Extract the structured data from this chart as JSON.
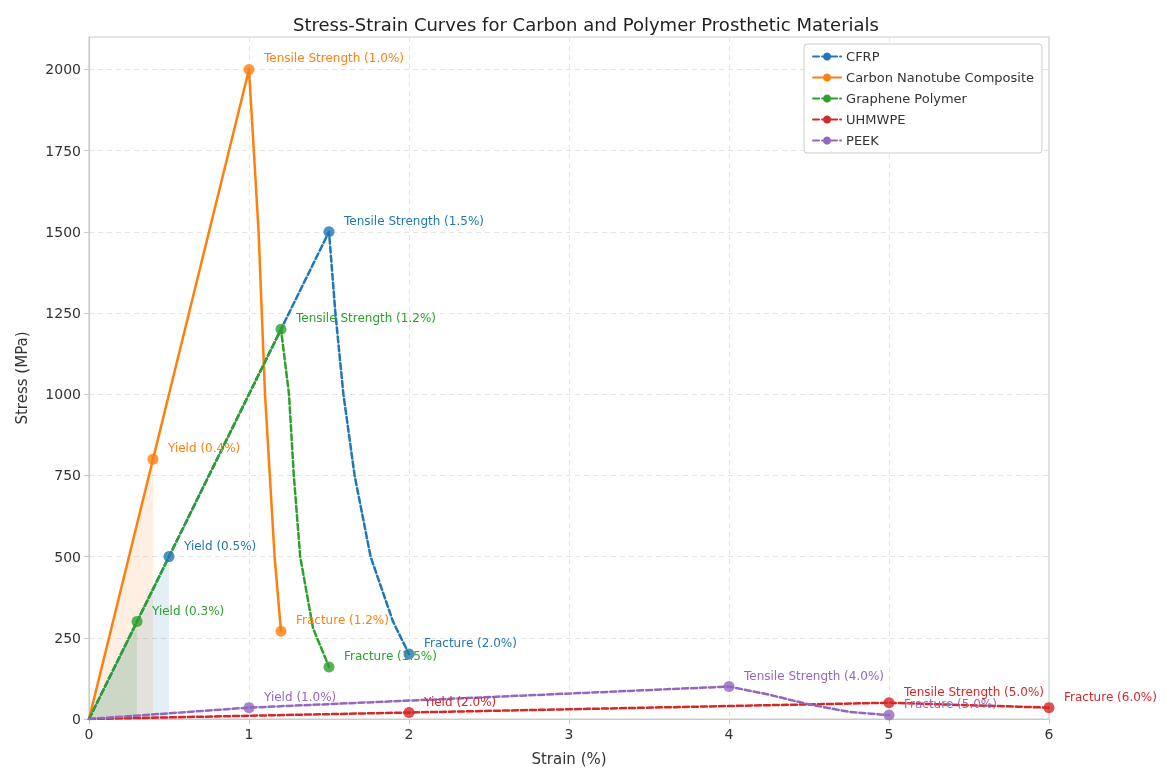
{
  "chart_data": {
    "type": "line",
    "title": "Stress-Strain Curves for Carbon and Polymer Prosthetic Materials",
    "xlabel": "Strain (%)",
    "ylabel": "Stress (MPa)",
    "xlim": [
      0,
      6
    ],
    "xticks": [
      0,
      1,
      2,
      3,
      4,
      5,
      6
    ],
    "ylim": [
      0,
      2100
    ],
    "yticks": [
      0,
      250,
      500,
      750,
      1000,
      1250,
      1500,
      1750,
      2000
    ],
    "grid": true,
    "legend": "top right",
    "marker": "none",
    "series": [
      {
        "name": "CFRP",
        "color": "#1f77b4",
        "line_style": "dashed",
        "x": [
          0,
          0.5,
          1.5,
          1.54,
          1.59,
          1.66,
          1.76,
          1.9,
          2.0
        ],
        "values": [
          0,
          500,
          1500,
          1250,
          1000,
          750,
          500,
          300,
          200
        ]
      },
      {
        "name": "Carbon Nanotube Composite",
        "color": "#ff7f0e",
        "line_style": "solid",
        "x": [
          0,
          0.4,
          1.0,
          1.03,
          1.06,
          1.1,
          1.13,
          1.16,
          1.2
        ],
        "values": [
          0,
          800,
          2000,
          1750,
          1500,
          1000,
          750,
          500,
          270
        ]
      },
      {
        "name": "Graphene Polymer",
        "color": "#2ca02c",
        "line_style": "dashed",
        "x": [
          0,
          0.3,
          1.2,
          1.25,
          1.28,
          1.32,
          1.4,
          1.5
        ],
        "values": [
          0,
          300,
          1200,
          1000,
          750,
          500,
          280,
          160
        ]
      },
      {
        "name": "UHMWPE",
        "color": "#d62728",
        "line_style": "dashed",
        "x": [
          0,
          2,
          5,
          6
        ],
        "values": [
          0,
          20,
          50,
          35
        ]
      },
      {
        "name": "PEEK",
        "color": "#9467bd",
        "line_style": "dashed",
        "x": [
          0,
          1,
          4,
          4.25,
          4.5,
          4.75,
          5
        ],
        "values": [
          0,
          35,
          100,
          75,
          45,
          22,
          12
        ]
      },
      {
        "type": "scatter",
        "marker": "circle",
        "color": "#1f77b4",
        "x": [
          0.5,
          1.5,
          2.0
        ],
        "values": [
          500,
          1500,
          200
        ]
      },
      {
        "type": "scatter",
        "marker": "circle",
        "color": "#ff7f0e",
        "x": [
          0.4,
          1.0,
          1.2
        ],
        "values": [
          800,
          2000,
          270
        ]
      },
      {
        "type": "scatter",
        "marker": "circle",
        "color": "#2ca02c",
        "x": [
          0.3,
          1.2,
          1.5
        ],
        "values": [
          300,
          1200,
          160
        ]
      },
      {
        "type": "scatter",
        "marker": "circle",
        "color": "#d62728",
        "x": [
          2,
          5,
          6
        ],
        "values": [
          20,
          50,
          35
        ]
      },
      {
        "type": "scatter",
        "marker": "circle",
        "color": "#9467bd",
        "x": [
          1,
          4,
          5
        ],
        "values": [
          35,
          100,
          12
        ]
      },
      {
        "type": "area",
        "color": "#ff7f0e",
        "x": [
          0,
          0.4
        ],
        "values": [
          0,
          800
        ]
      },
      {
        "type": "area",
        "color": "#1f77b4",
        "x": [
          0,
          0.5
        ],
        "values": [
          0,
          500
        ]
      },
      {
        "type": "area",
        "color": "#2ca02c",
        "x": [
          0,
          0.3
        ],
        "values": [
          0,
          300
        ]
      }
    ],
    "annotations": [
      {
        "text": "Yield (0.5%)",
        "x": 0.5,
        "y": 500
      },
      {
        "text": "Tensile Strength (1.5%)",
        "x": 1.5,
        "y": 1500
      },
      {
        "text": "Fracture (2.0%)",
        "x": 2.0,
        "y": 200
      },
      {
        "text": "Yield (0.4%)",
        "x": 0.4,
        "y": 800
      },
      {
        "text": "Tensile Strength (1.0%)",
        "x": 1.0,
        "y": 2000
      },
      {
        "text": "Fracture (1.2%)",
        "x": 1.2,
        "y": 270
      },
      {
        "text": "Yield (0.3%)",
        "x": 0.3,
        "y": 300
      },
      {
        "text": "Tensile Strength (1.2%)",
        "x": 1.2,
        "y": 1200
      },
      {
        "text": "Fracture (1.5%)",
        "x": 1.5,
        "y": 160
      },
      {
        "text": "Yield (2.0%)",
        "x": 2,
        "y": 20
      },
      {
        "text": "Tensile Strength (5.0%)",
        "x": 5,
        "y": 50
      },
      {
        "text": "Fracture (6.0%)",
        "x": 6,
        "y": 35
      },
      {
        "text": "Yield (1.0%)",
        "x": 1,
        "y": 35
      },
      {
        "text": "Tensile Strength (4.0%)",
        "x": 4,
        "y": 100
      },
      {
        "text": "Fracture (5.0%)",
        "x": 5,
        "y": 12
      }
    ]
  }
}
